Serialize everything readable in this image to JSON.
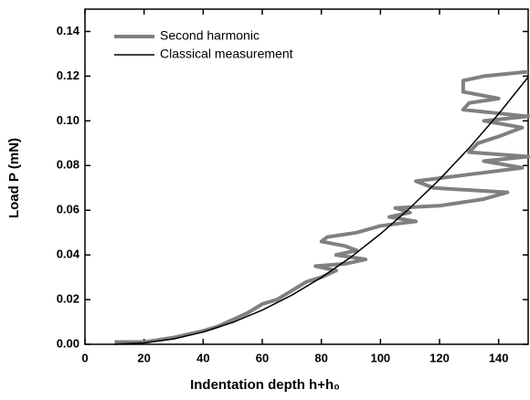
{
  "chart_data": {
    "type": "line",
    "xlabel": "Indentation depth h+h₀",
    "ylabel": "Load P (mN)",
    "xlim": [
      0,
      150
    ],
    "ylim": [
      0,
      0.15
    ],
    "xticks": [
      0,
      20,
      40,
      60,
      80,
      100,
      120,
      140
    ],
    "yticks": [
      {
        "value": 0,
        "label": "0.00"
      },
      {
        "value": 0.02,
        "label": "0.02"
      },
      {
        "value": 0.04,
        "label": "0.04"
      },
      {
        "value": 0.06,
        "label": "0.06"
      },
      {
        "value": 0.08,
        "label": "0.08"
      },
      {
        "value": 0.1,
        "label": "0.10"
      },
      {
        "value": 0.12,
        "label": "0.12"
      },
      {
        "value": 0.14,
        "label": "0.14"
      }
    ],
    "legend": "upper left",
    "series": [
      {
        "name": "Second harmonic",
        "color": "#808080",
        "width": 4,
        "x": [
          10,
          20,
          30,
          40,
          45,
          50,
          55,
          60,
          65,
          70,
          75,
          80,
          85,
          78,
          88,
          95,
          85,
          92,
          88,
          80,
          82,
          92,
          100,
          112,
          103,
          110,
          105,
          120,
          135,
          143,
          118,
          112,
          130,
          148,
          135,
          150,
          130,
          133,
          140,
          148,
          135,
          150,
          128,
          130,
          140,
          128,
          128,
          135,
          150
        ],
        "values": [
          0.001,
          0.001,
          0.003,
          0.006,
          0.008,
          0.011,
          0.014,
          0.018,
          0.02,
          0.024,
          0.028,
          0.03,
          0.033,
          0.035,
          0.036,
          0.038,
          0.04,
          0.042,
          0.044,
          0.046,
          0.048,
          0.05,
          0.053,
          0.055,
          0.057,
          0.059,
          0.061,
          0.062,
          0.065,
          0.068,
          0.07,
          0.073,
          0.076,
          0.079,
          0.082,
          0.084,
          0.086,
          0.09,
          0.093,
          0.097,
          0.1,
          0.102,
          0.105,
          0.108,
          0.11,
          0.113,
          0.118,
          0.12,
          0.122
        ]
      },
      {
        "name": "Classical measurement",
        "color": "#000000",
        "width": 1.5,
        "x": [
          10,
          20,
          30,
          40,
          50,
          60,
          70,
          80,
          90,
          100,
          110,
          120,
          130,
          140,
          150
        ],
        "values": [
          0,
          0.0006,
          0.0024,
          0.0055,
          0.0098,
          0.0153,
          0.022,
          0.0299,
          0.039,
          0.0494,
          0.061,
          0.0738,
          0.0878,
          0.1031,
          0.1196
        ]
      }
    ]
  }
}
